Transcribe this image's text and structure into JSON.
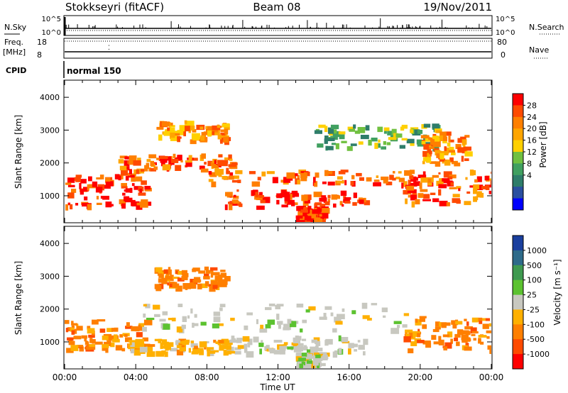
{
  "header": {
    "station": "Stokkseyri (fitACF)",
    "beam": "Beam 08",
    "date": "19/Nov/2011"
  },
  "noise_panel": {
    "left_label": "N.Sky",
    "right_label": "N.Search",
    "left_ticks": [
      "10^5",
      "10^0"
    ],
    "right_ticks": [
      "10^5",
      "10^0"
    ]
  },
  "freq_panel": {
    "left_label_1": "Freq.",
    "left_label_2": "[MHz]",
    "right_label": "Nave",
    "left_ticks": [
      "18",
      "8"
    ],
    "right_ticks": [
      "80",
      "0"
    ]
  },
  "cpid_panel": {
    "label": "CPID",
    "mode": "normal 150"
  },
  "x_axis": {
    "label": "Time UT",
    "ticks": [
      "00:00",
      "04:00",
      "08:00",
      "12:00",
      "16:00",
      "20:00",
      "00:00"
    ]
  },
  "chart_data": [
    {
      "type": "heatmap",
      "title": "Power",
      "xlabel": "Time UT",
      "ylabel": "Slant Range [km]",
      "xlim": [
        "00:00",
        "24:00"
      ],
      "ylim": [
        200,
        4500
      ],
      "yticks": [
        1000,
        2000,
        3000,
        4000
      ],
      "colorbar": {
        "label": "Power [dB]",
        "ticks": [
          "28",
          "24",
          "20",
          "16",
          "12",
          "8",
          "4"
        ],
        "colors": [
          "#ff0000",
          "#ff4a00",
          "#ff7f00",
          "#ffa500",
          "#ffd000",
          "#70c040",
          "#40a060",
          "#2e7d6a",
          "#2a4fa0",
          "#0000ff"
        ]
      },
      "echo_regions": [
        {
          "t0": 0.0,
          "t1": 4.5,
          "r0": 700,
          "r1": 1700,
          "power_db": 28
        },
        {
          "t0": 3.0,
          "t1": 9.5,
          "r0": 1800,
          "r1": 2300,
          "power_db": 24
        },
        {
          "t0": 5.0,
          "t1": 9.0,
          "r0": 2700,
          "r1": 3300,
          "power_db": 22
        },
        {
          "t0": 8.0,
          "t1": 19.5,
          "r0": 1400,
          "r1": 1800,
          "power_db": 26
        },
        {
          "t0": 9.0,
          "t1": 17.0,
          "r0": 700,
          "r1": 1200,
          "power_db": 28
        },
        {
          "t0": 13.0,
          "t1": 14.5,
          "r0": 300,
          "r1": 700,
          "power_db": 28
        },
        {
          "t0": 14.0,
          "t1": 21.0,
          "r0": 2500,
          "r1": 3200,
          "power_db": 14
        },
        {
          "t0": 19.0,
          "t1": 24.0,
          "r0": 800,
          "r1": 1800,
          "power_db": 26
        },
        {
          "t0": 20.0,
          "t1": 22.5,
          "r0": 2000,
          "r1": 3000,
          "power_db": 22
        }
      ]
    },
    {
      "type": "heatmap",
      "title": "Velocity",
      "xlabel": "Time UT",
      "ylabel": "Slant Range [km]",
      "xlim": [
        "00:00",
        "24:00"
      ],
      "ylim": [
        200,
        4500
      ],
      "yticks": [
        1000,
        2000,
        3000,
        4000
      ],
      "colorbar": {
        "label": "Velocity [m s⁻¹]",
        "ticks": [
          "1000",
          "500",
          "100",
          "25",
          "-25",
          "-100",
          "-500",
          "-1000"
        ],
        "colors": [
          "#1a3f9e",
          "#2e6b8a",
          "#3f9a50",
          "#5cc230",
          "#c8c8c0",
          "#ffb000",
          "#ff7f00",
          "#ff4a00",
          "#ff0000"
        ]
      },
      "echo_regions": [
        {
          "t0": 0.0,
          "t1": 4.5,
          "r0": 800,
          "r1": 1700,
          "velocity_ms": -300
        },
        {
          "t0": 3.5,
          "t1": 9.0,
          "r0": 700,
          "r1": 1100,
          "velocity_ms": -100
        },
        {
          "t0": 5.0,
          "t1": 9.0,
          "r0": 2700,
          "r1": 3300,
          "velocity_ms": -400
        },
        {
          "t0": 4.0,
          "t1": 19.5,
          "r0": 1400,
          "r1": 2200,
          "velocity_ms": 0
        },
        {
          "t0": 9.0,
          "t1": 17.0,
          "r0": 700,
          "r1": 1200,
          "velocity_ms": 0
        },
        {
          "t0": 13.0,
          "t1": 14.5,
          "r0": 300,
          "r1": 700,
          "velocity_ms": 0
        },
        {
          "t0": 19.0,
          "t1": 24.0,
          "r0": 800,
          "r1": 1800,
          "velocity_ms": -400
        }
      ]
    }
  ]
}
